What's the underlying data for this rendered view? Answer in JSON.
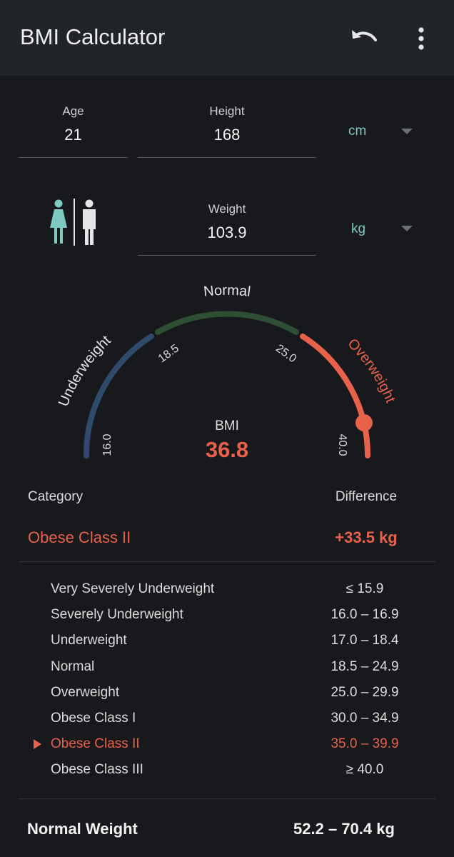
{
  "app": {
    "title": "BMI Calculator"
  },
  "toolbar": {
    "undo_icon": "undo-icon",
    "more_icon": "more-vert-icon"
  },
  "inputs": {
    "age": {
      "label": "Age",
      "value": "21"
    },
    "height": {
      "label": "Height",
      "value": "168",
      "unit": "cm"
    },
    "weight": {
      "label": "Weight",
      "value": "103.9",
      "unit": "kg"
    }
  },
  "gender": {
    "female_icon": "female-icon",
    "male_icon": "male-icon",
    "selected": "female"
  },
  "gauge": {
    "segments": [
      "Underweight",
      "Normal",
      "Overweight"
    ],
    "ticks": [
      "16.0",
      "18.5",
      "25.0",
      "40.0"
    ],
    "min": 16.0,
    "max": 40.0,
    "value": 36.8,
    "colors": {
      "underweight": "#2f4a6b",
      "normal": "#2f4f35",
      "overweight": "#e8624b"
    }
  },
  "result": {
    "bmi_label": "BMI",
    "bmi_value": "36.8"
  },
  "summary": {
    "category_header": "Category",
    "difference_header": "Difference",
    "category": "Obese Class II",
    "difference": "+33.5 kg"
  },
  "categories": [
    {
      "name": "Very Severely Underweight",
      "range": "≤ 15.9",
      "active": false
    },
    {
      "name": "Severely Underweight",
      "range": "16.0 – 16.9",
      "active": false
    },
    {
      "name": "Underweight",
      "range": "17.0 – 18.4",
      "active": false
    },
    {
      "name": "Normal",
      "range": "18.5 – 24.9",
      "active": false
    },
    {
      "name": "Overweight",
      "range": "25.0 – 29.9",
      "active": false
    },
    {
      "name": "Obese Class I",
      "range": "30.0 – 34.9",
      "active": false
    },
    {
      "name": "Obese Class II",
      "range": "35.0 – 39.9",
      "active": true
    },
    {
      "name": "Obese Class III",
      "range": "≥ 40.0",
      "active": false
    }
  ],
  "normal_weight": {
    "label": "Normal Weight",
    "value": "52.2 – 70.4 kg"
  },
  "colors": {
    "accent": "#e8624b",
    "teal": "#7ec9c0",
    "background": "#18191d",
    "appbar": "#212429"
  }
}
